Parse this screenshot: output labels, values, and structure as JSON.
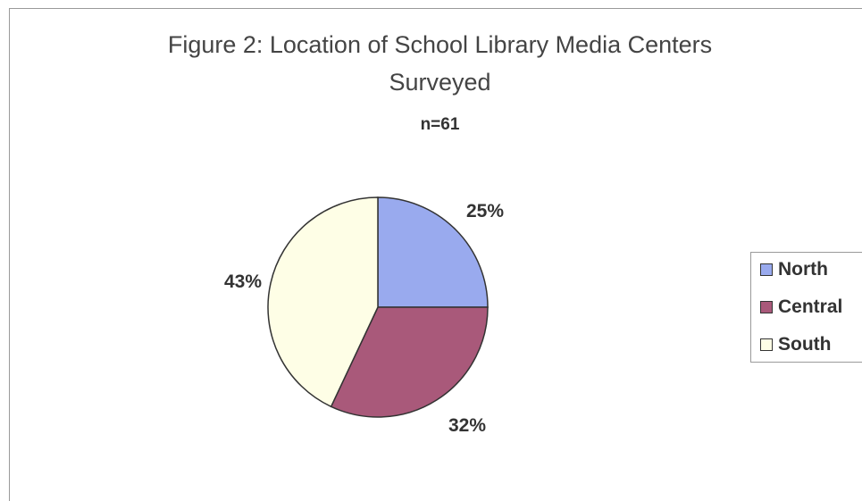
{
  "chart_data": {
    "type": "pie",
    "title": "Figure 2: Location of School Library Media Centers",
    "title_line2": "Surveyed",
    "subtitle": "n=61",
    "categories": [
      "North",
      "Central",
      "South"
    ],
    "values": [
      25,
      32,
      43
    ],
    "labels": [
      "25%",
      "32%",
      "43%"
    ],
    "colors": [
      "#99aaee",
      "#a9597a",
      "#fefee6"
    ],
    "legend_placement": "right"
  }
}
